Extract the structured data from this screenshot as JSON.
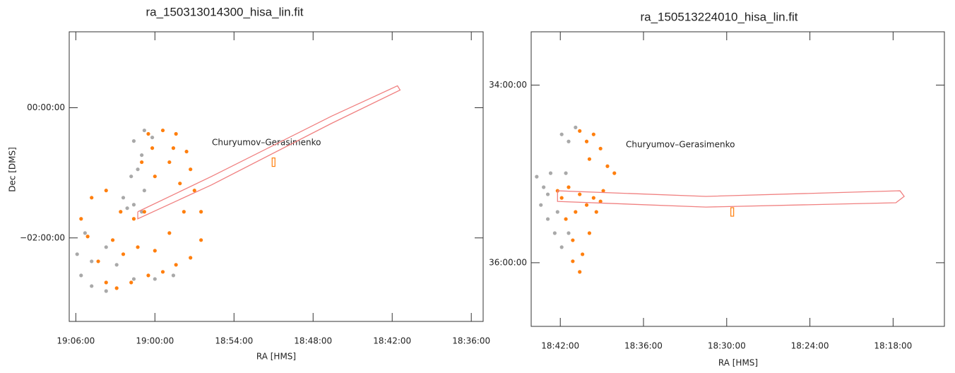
{
  "chart_data": [
    {
      "type": "scatter",
      "title": "ra_150313014300_hisa_lin.fit",
      "xlabel": "RA [HMS]",
      "ylabel": "Dec [DMS]",
      "annotation": "Churyumov–Gerasimenko",
      "xlim": [
        1146.5,
        1115.1
      ],
      "ylim": [
        -197,
        70
      ],
      "xticks": [
        {
          "value": 1146,
          "label": "19:06:00"
        },
        {
          "value": 1140,
          "label": "19:00:00"
        },
        {
          "value": 1134,
          "label": "18:54:00"
        },
        {
          "value": 1128,
          "label": "18:48:00"
        },
        {
          "value": 1122,
          "label": "18:42:00"
        },
        {
          "value": 1116,
          "label": "18:36:00"
        }
      ],
      "yticks": [
        {
          "value": 0,
          "label": "00:00:00"
        },
        {
          "value": -120,
          "label": "−02:00:00"
        }
      ],
      "series": [
        {
          "mode": "points",
          "color": "#a9a9a9",
          "x": [
            1140.8,
            1141.6,
            1141.0,
            1141.8,
            1142.4,
            1141.6,
            1141.0,
            1142.1,
            1145.3,
            1145.9,
            1145.6,
            1144.8,
            1143.7,
            1141.6,
            1140.0,
            1138.6,
            1142.9,
            1144.8,
            1143.7,
            1140.8,
            1141.3,
            1140.2
          ],
          "values": [
            -20.9,
            -30.7,
            -43.7,
            -63.3,
            -82.9,
            -89.4,
            -95.9,
            -92.6,
            -115.5,
            -135.0,
            -154.6,
            -164.4,
            -169.0,
            -157.9,
            -157.9,
            -154.6,
            -144.8,
            -141.6,
            -128.5,
            -76.3,
            -56.8,
            -27.4
          ]
        },
        {
          "mode": "points",
          "color": "#ff7f0e",
          "x": [
            1140.5,
            1139.4,
            1138.4,
            1137.6,
            1137.3,
            1137.0,
            1136.5,
            1136.5,
            1137.3,
            1138.4,
            1139.4,
            1140.5,
            1141.8,
            1142.9,
            1143.7,
            1144.3,
            1145.1,
            1145.6,
            1144.8,
            1143.7,
            1142.6,
            1141.6,
            1140.8,
            1140.0,
            1138.9,
            1138.1,
            1137.8,
            1138.9,
            1140.0,
            1141.3,
            1142.4,
            1143.2,
            1141.0,
            1140.2,
            1138.6
          ],
          "values": [
            -24.1,
            -20.9,
            -24.1,
            -40.4,
            -56.8,
            -76.3,
            -95.9,
            -122.0,
            -138.3,
            -144.8,
            -151.3,
            -154.6,
            -161.1,
            -166.3,
            -161.1,
            -141.6,
            -118.7,
            -102.4,
            -82.9,
            -76.3,
            -95.9,
            -102.4,
            -95.9,
            -63.3,
            -50.2,
            -69.8,
            -95.9,
            -115.5,
            -131.8,
            -128.5,
            -135.0,
            -122.0,
            -50.2,
            -37.2,
            -37.2
          ]
        },
        {
          "mode": "line",
          "color": "#f08080",
          "x": [
            1141.3,
            1135.7,
            1126.6,
            1121.6,
            1121.4,
            1126.6,
            1135.7,
            1141.3,
            1141.3
          ],
          "values": [
            -95.9,
            -63.3,
            -7.8,
            20.2,
            16.3,
            -14.4,
            -71.1,
            -102.4,
            -95.9
          ]
        },
        {
          "mode": "box",
          "color": "#ff7f0e",
          "x": [
            1131.0
          ],
          "values": [
            -50.2
          ]
        }
      ]
    },
    {
      "type": "scatter",
      "title": "ra_150513224010_hisa_lin.fit",
      "xlabel": "RA [HMS]",
      "annotation": "Churyumov–Gerasimenko",
      "xlim": [
        1124.1,
        1094.3
      ],
      "ylim": [
        2203,
        2004
      ],
      "xticks": [
        {
          "value": 1122,
          "label": "18:42:00"
        },
        {
          "value": 1116,
          "label": "18:36:00"
        },
        {
          "value": 1110,
          "label": "18:30:00"
        },
        {
          "value": 1104,
          "label": "18:24:00"
        },
        {
          "value": 1098,
          "label": "18:18:00"
        }
      ],
      "yticks": [
        {
          "value": 2040,
          "label": "34:00:00"
        },
        {
          "value": 2160,
          "label": "36:00:00"
        }
      ],
      "series": [
        {
          "mode": "points",
          "color": "#a9a9a9",
          "x": [
            1121.9,
            1121.4,
            1120.9,
            1123.7,
            1123.2,
            1123.4,
            1122.9,
            1122.4,
            1121.9,
            1121.6,
            1122.7,
            1122.2,
            1121.4,
            1122.9
          ],
          "values": [
            2073.3,
            2078.1,
            2068.6,
            2101.9,
            2109.0,
            2121.0,
            2130.5,
            2140.0,
            2149.5,
            2099.5,
            2099.5,
            2125.7,
            2140.0,
            2113.8
          ]
        },
        {
          "mode": "points",
          "color": "#ff7f0e",
          "x": [
            1120.6,
            1119.6,
            1119.1,
            1118.6,
            1118.1,
            1118.9,
            1119.4,
            1119.9,
            1120.4,
            1120.6,
            1121.1,
            1121.6,
            1121.9,
            1121.4,
            1120.6,
            1120.1,
            1119.6,
            1120.9,
            1120.1,
            1119.9,
            1122.2,
            1119.1,
            1121.1
          ],
          "values": [
            2071.0,
            2073.3,
            2082.9,
            2094.8,
            2099.5,
            2111.4,
            2125.7,
            2140.0,
            2154.3,
            2166.2,
            2144.8,
            2130.5,
            2116.2,
            2109.0,
            2113.8,
            2121.0,
            2116.2,
            2125.7,
            2078.1,
            2090.0,
            2111.4,
            2118.6,
            2159.0
          ]
        },
        {
          "mode": "line",
          "color": "#f08080",
          "x": [
            1122.2,
            1111.5,
            1097.5,
            1097.2,
            1097.8,
            1111.5,
            1122.2,
            1122.2
          ],
          "values": [
            2111.4,
            2115.2,
            2111.4,
            2115.2,
            2119.5,
            2122.4,
            2118.6,
            2111.4
          ]
        },
        {
          "mode": "box",
          "color": "#ff7f0e",
          "x": [
            1109.6
          ],
          "values": [
            2125.7
          ]
        }
      ]
    }
  ]
}
